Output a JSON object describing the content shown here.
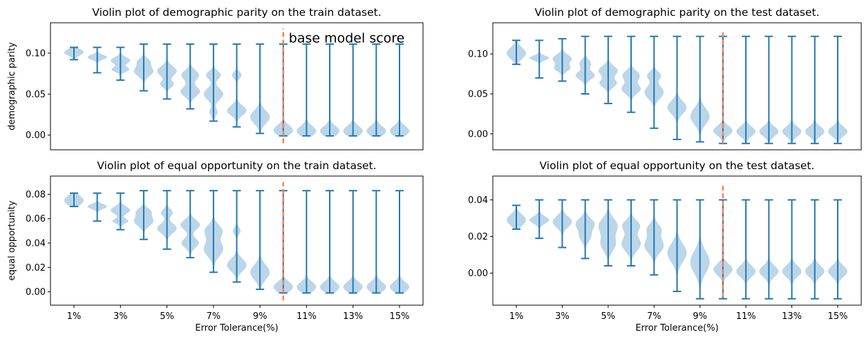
{
  "chart_data": [
    {
      "type": "violin",
      "title": "Violin plot of demographic parity on the train dataset.",
      "xlabel": "",
      "ylabel": "demographic parity",
      "ylim": [
        -0.018,
        0.137
      ],
      "yticks": [
        0.0,
        0.05,
        0.1
      ],
      "ytick_labels": [
        "0.00",
        "0.05",
        "0.10"
      ],
      "annotation": "base model score",
      "base_model_x": 10,
      "base_line_ylim": [
        -0.01,
        0.13
      ],
      "series": [
        {
          "x": 1,
          "min": 0.092,
          "max": 0.107,
          "modes": [
            [
              0.101,
              0.004,
              1.0
            ]
          ]
        },
        {
          "x": 2,
          "min": 0.076,
          "max": 0.107,
          "modes": [
            [
              0.095,
              0.003,
              1.0
            ]
          ]
        },
        {
          "x": 3,
          "min": 0.067,
          "max": 0.107,
          "modes": [
            [
              0.091,
              0.004,
              0.9
            ],
            [
              0.08,
              0.003,
              0.8
            ]
          ]
        },
        {
          "x": 4,
          "min": 0.054,
          "max": 0.111,
          "modes": [
            [
              0.09,
              0.004,
              0.5
            ],
            [
              0.078,
              0.006,
              0.9
            ]
          ]
        },
        {
          "x": 5,
          "min": 0.044,
          "max": 0.111,
          "modes": [
            [
              0.078,
              0.006,
              0.9
            ],
            [
              0.062,
              0.004,
              0.6
            ]
          ]
        },
        {
          "x": 6,
          "min": 0.032,
          "max": 0.111,
          "modes": [
            [
              0.073,
              0.006,
              0.9
            ],
            [
              0.053,
              0.006,
              1.0
            ]
          ]
        },
        {
          "x": 7,
          "min": 0.017,
          "max": 0.111,
          "modes": [
            [
              0.073,
              0.005,
              0.75
            ],
            [
              0.05,
              0.007,
              1.0
            ],
            [
              0.028,
              0.005,
              0.4
            ]
          ]
        },
        {
          "x": 8,
          "min": 0.01,
          "max": 0.111,
          "modes": [
            [
              0.073,
              0.004,
              0.5
            ],
            [
              0.03,
              0.006,
              1.0
            ]
          ]
        },
        {
          "x": 9,
          "min": 0.002,
          "max": 0.111,
          "modes": [
            [
              0.022,
              0.008,
              1.0
            ]
          ]
        },
        {
          "x": 10,
          "min": -0.001,
          "max": 0.111,
          "modes": [
            [
              0.006,
              0.006,
              1.0
            ]
          ]
        },
        {
          "x": 11,
          "min": -0.001,
          "max": 0.111,
          "modes": [
            [
              0.005,
              0.006,
              1.0
            ]
          ]
        },
        {
          "x": 12,
          "min": -0.001,
          "max": 0.111,
          "modes": [
            [
              0.005,
              0.006,
              1.0
            ]
          ]
        },
        {
          "x": 13,
          "min": -0.001,
          "max": 0.111,
          "modes": [
            [
              0.005,
              0.006,
              1.0
            ]
          ]
        },
        {
          "x": 14,
          "min": -0.001,
          "max": 0.111,
          "modes": [
            [
              0.005,
              0.006,
              1.0
            ]
          ]
        },
        {
          "x": 15,
          "min": -0.001,
          "max": 0.111,
          "modes": [
            [
              0.005,
              0.006,
              1.0
            ]
          ]
        }
      ]
    },
    {
      "type": "violin",
      "title": "Violin plot of demographic parity on the test dataset.",
      "xlabel": "",
      "ylabel": "",
      "ylim": [
        -0.02,
        0.139
      ],
      "yticks": [
        0.0,
        0.05,
        0.1
      ],
      "ytick_labels": [
        "0.00",
        "0.05",
        "0.10"
      ],
      "base_model_x": 10,
      "base_line_ylim": [
        -0.012,
        0.13
      ],
      "series": [
        {
          "x": 1,
          "min": 0.087,
          "max": 0.117,
          "modes": [
            [
              0.101,
              0.007,
              1.0
            ]
          ]
        },
        {
          "x": 2,
          "min": 0.07,
          "max": 0.117,
          "modes": [
            [
              0.095,
              0.003,
              1.0
            ]
          ]
        },
        {
          "x": 3,
          "min": 0.066,
          "max": 0.119,
          "modes": [
            [
              0.094,
              0.005,
              1.0
            ],
            [
              0.082,
              0.004,
              0.8
            ]
          ]
        },
        {
          "x": 4,
          "min": 0.05,
          "max": 0.122,
          "modes": [
            [
              0.088,
              0.005,
              0.6
            ],
            [
              0.073,
              0.005,
              1.0
            ]
          ]
        },
        {
          "x": 5,
          "min": 0.038,
          "max": 0.122,
          "modes": [
            [
              0.079,
              0.006,
              0.9
            ],
            [
              0.063,
              0.005,
              0.8
            ]
          ]
        },
        {
          "x": 6,
          "min": 0.027,
          "max": 0.122,
          "modes": [
            [
              0.073,
              0.006,
              0.9
            ],
            [
              0.056,
              0.006,
              1.0
            ]
          ]
        },
        {
          "x": 7,
          "min": 0.007,
          "max": 0.122,
          "modes": [
            [
              0.073,
              0.005,
              0.7
            ],
            [
              0.052,
              0.008,
              1.0
            ]
          ]
        },
        {
          "x": 8,
          "min": -0.007,
          "max": 0.122,
          "modes": [
            [
              0.033,
              0.008,
              1.0
            ]
          ]
        },
        {
          "x": 9,
          "min": -0.01,
          "max": 0.122,
          "modes": [
            [
              0.022,
              0.01,
              1.0
            ]
          ]
        },
        {
          "x": 10,
          "min": -0.012,
          "max": 0.122,
          "modes": [
            [
              0.004,
              0.006,
              1.0
            ]
          ]
        },
        {
          "x": 11,
          "min": -0.012,
          "max": 0.122,
          "modes": [
            [
              0.003,
              0.006,
              1.0
            ]
          ]
        },
        {
          "x": 12,
          "min": -0.012,
          "max": 0.122,
          "modes": [
            [
              0.003,
              0.006,
              1.0
            ]
          ]
        },
        {
          "x": 13,
          "min": -0.012,
          "max": 0.122,
          "modes": [
            [
              0.003,
              0.006,
              1.0
            ]
          ]
        },
        {
          "x": 14,
          "min": -0.012,
          "max": 0.122,
          "modes": [
            [
              0.003,
              0.006,
              1.0
            ]
          ]
        },
        {
          "x": 15,
          "min": -0.012,
          "max": 0.122,
          "modes": [
            [
              0.003,
              0.006,
              1.0
            ]
          ]
        }
      ]
    },
    {
      "type": "violin",
      "title": "Violin plot of equal opportunity on the train dataset.",
      "xlabel": "Error Tolerance(%)",
      "ylabel": "equal opportunity",
      "ylim": [
        -0.011,
        0.095
      ],
      "yticks": [
        0.0,
        0.02,
        0.04,
        0.06,
        0.08
      ],
      "ytick_labels": [
        "0.00",
        "0.02",
        "0.04",
        "0.06",
        "0.08"
      ],
      "xtick_positions": [
        1,
        3,
        5,
        7,
        9,
        11,
        13,
        15
      ],
      "xtick_labels": [
        "1%",
        "3%",
        "5%",
        "7%",
        "9%",
        "11%",
        "13%",
        "15%"
      ],
      "base_model_x": 10,
      "base_line_ylim": [
        -0.007,
        0.09
      ],
      "series": [
        {
          "x": 1,
          "min": 0.07,
          "max": 0.081,
          "modes": [
            [
              0.075,
              0.004,
              1.0
            ]
          ]
        },
        {
          "x": 2,
          "min": 0.058,
          "max": 0.081,
          "modes": [
            [
              0.07,
              0.002,
              1.0
            ]
          ]
        },
        {
          "x": 3,
          "min": 0.051,
          "max": 0.081,
          "modes": [
            [
              0.067,
              0.003,
              1.0
            ],
            [
              0.058,
              0.002,
              0.8
            ]
          ]
        },
        {
          "x": 4,
          "min": 0.043,
          "max": 0.083,
          "modes": [
            [
              0.066,
              0.003,
              0.6
            ],
            [
              0.058,
              0.004,
              0.9
            ]
          ]
        },
        {
          "x": 5,
          "min": 0.035,
          "max": 0.083,
          "modes": [
            [
              0.065,
              0.003,
              0.6
            ],
            [
              0.052,
              0.004,
              1.0
            ]
          ]
        },
        {
          "x": 6,
          "min": 0.028,
          "max": 0.083,
          "modes": [
            [
              0.055,
              0.004,
              0.9
            ],
            [
              0.04,
              0.004,
              0.8
            ]
          ]
        },
        {
          "x": 7,
          "min": 0.016,
          "max": 0.083,
          "modes": [
            [
              0.05,
              0.005,
              0.9
            ],
            [
              0.035,
              0.006,
              1.0
            ]
          ]
        },
        {
          "x": 8,
          "min": 0.008,
          "max": 0.083,
          "modes": [
            [
              0.05,
              0.003,
              0.4
            ],
            [
              0.022,
              0.005,
              1.0
            ]
          ]
        },
        {
          "x": 9,
          "min": 0.002,
          "max": 0.083,
          "modes": [
            [
              0.016,
              0.006,
              1.0
            ]
          ]
        },
        {
          "x": 10,
          "min": -0.001,
          "max": 0.083,
          "modes": [
            [
              0.004,
              0.004,
              1.0
            ]
          ]
        },
        {
          "x": 11,
          "min": -0.001,
          "max": 0.083,
          "modes": [
            [
              0.004,
              0.004,
              1.0
            ]
          ]
        },
        {
          "x": 12,
          "min": -0.001,
          "max": 0.083,
          "modes": [
            [
              0.004,
              0.004,
              1.0
            ]
          ]
        },
        {
          "x": 13,
          "min": -0.001,
          "max": 0.083,
          "modes": [
            [
              0.004,
              0.004,
              1.0
            ]
          ]
        },
        {
          "x": 14,
          "min": -0.001,
          "max": 0.083,
          "modes": [
            [
              0.004,
              0.004,
              1.0
            ]
          ]
        },
        {
          "x": 15,
          "min": -0.001,
          "max": 0.083,
          "modes": [
            [
              0.004,
              0.004,
              1.0
            ]
          ]
        }
      ]
    },
    {
      "type": "violin",
      "title": "Violin plot of equal opportunity on the test dataset.",
      "xlabel": "Error Tolerance(%)",
      "ylabel": "",
      "ylim": [
        -0.0175,
        0.053
      ],
      "yticks": [
        0.0,
        0.02,
        0.04
      ],
      "ytick_labels": [
        "0.00",
        "0.02",
        "0.04"
      ],
      "xtick_positions": [
        1,
        3,
        5,
        7,
        9,
        11,
        13,
        15
      ],
      "xtick_labels": [
        "1%",
        "3%",
        "5%",
        "7%",
        "9%",
        "11%",
        "13%",
        "15%"
      ],
      "base_model_x": 10,
      "base_line_ylim": [
        -0.013,
        0.048
      ],
      "series": [
        {
          "x": 1,
          "min": 0.024,
          "max": 0.037,
          "modes": [
            [
              0.029,
              0.003,
              1.0
            ]
          ]
        },
        {
          "x": 2,
          "min": 0.019,
          "max": 0.04,
          "modes": [
            [
              0.029,
              0.002,
              1.0
            ]
          ]
        },
        {
          "x": 3,
          "min": 0.014,
          "max": 0.04,
          "modes": [
            [
              0.028,
              0.003,
              1.0
            ]
          ]
        },
        {
          "x": 4,
          "min": 0.008,
          "max": 0.04,
          "modes": [
            [
              0.027,
              0.003,
              1.0
            ],
            [
              0.02,
              0.003,
              0.6
            ]
          ]
        },
        {
          "x": 5,
          "min": 0.004,
          "max": 0.04,
          "modes": [
            [
              0.026,
              0.004,
              1.0
            ],
            [
              0.016,
              0.004,
              0.8
            ]
          ]
        },
        {
          "x": 6,
          "min": 0.004,
          "max": 0.04,
          "modes": [
            [
              0.026,
              0.003,
              0.8
            ],
            [
              0.016,
              0.004,
              0.9
            ]
          ]
        },
        {
          "x": 7,
          "min": -0.001,
          "max": 0.04,
          "modes": [
            [
              0.024,
              0.003,
              0.7
            ],
            [
              0.015,
              0.004,
              1.0
            ]
          ]
        },
        {
          "x": 8,
          "min": -0.01,
          "max": 0.04,
          "modes": [
            [
              0.011,
              0.005,
              1.0
            ]
          ]
        },
        {
          "x": 9,
          "min": -0.014,
          "max": 0.04,
          "modes": [
            [
              0.006,
              0.006,
              1.0
            ]
          ]
        },
        {
          "x": 10,
          "min": -0.014,
          "max": 0.04,
          "modes": [
            [
              0.002,
              0.003,
              1.0
            ]
          ]
        },
        {
          "x": 11,
          "min": -0.014,
          "max": 0.04,
          "modes": [
            [
              0.001,
              0.003,
              1.0
            ]
          ]
        },
        {
          "x": 12,
          "min": -0.014,
          "max": 0.04,
          "modes": [
            [
              0.001,
              0.003,
              1.0
            ]
          ]
        },
        {
          "x": 13,
          "min": -0.014,
          "max": 0.04,
          "modes": [
            [
              0.001,
              0.003,
              1.0
            ]
          ]
        },
        {
          "x": 14,
          "min": -0.014,
          "max": 0.04,
          "modes": [
            [
              0.001,
              0.003,
              1.0
            ]
          ]
        },
        {
          "x": 15,
          "min": -0.014,
          "max": 0.04,
          "modes": [
            [
              0.001,
              0.003,
              1.0
            ]
          ]
        }
      ]
    }
  ],
  "colors": {
    "violin_fill": "#1f77b4",
    "whisker": "#1f77b4",
    "base_line": "#ff7f50",
    "axes": "#000000"
  }
}
